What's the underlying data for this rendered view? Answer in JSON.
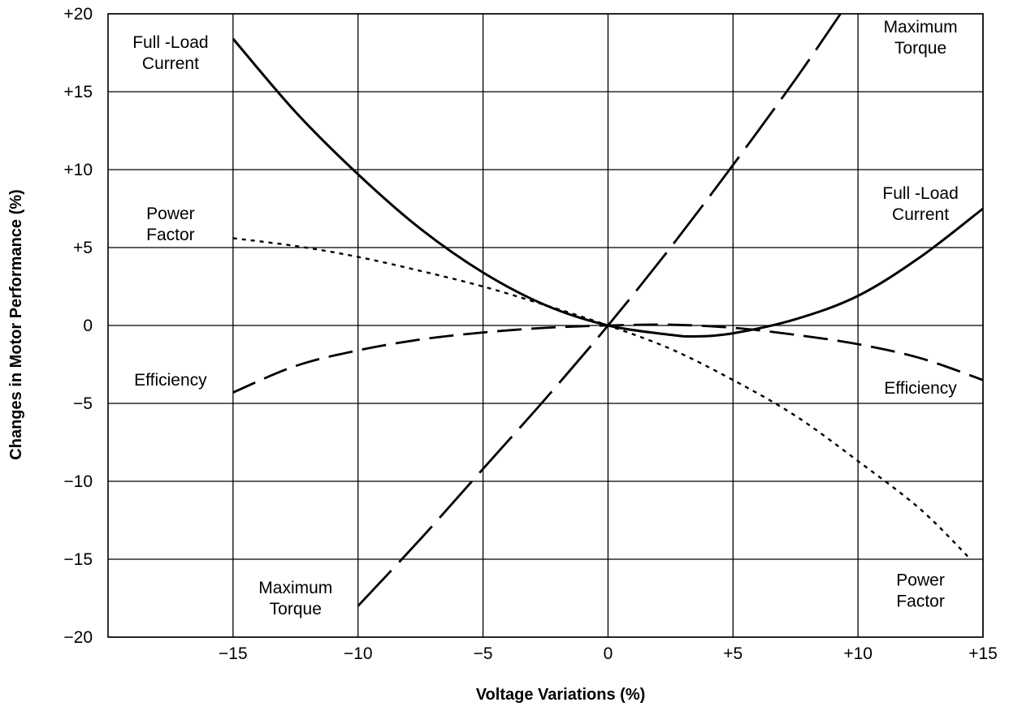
{
  "chart_data": {
    "type": "line",
    "xlabel": "Voltage Variations (%)",
    "ylabel": "Changes in Motor Performance (%)",
    "xlim": [
      -20,
      15
    ],
    "ylim": [
      -20,
      20
    ],
    "x_ticks": [
      -15,
      -10,
      -5,
      0,
      5,
      10,
      15
    ],
    "x_tick_labels": [
      "−15",
      "−10",
      "−5",
      "0",
      "+5",
      "+10",
      "+15"
    ],
    "y_ticks": [
      20,
      15,
      10,
      5,
      0,
      -5,
      -10,
      -15,
      -20
    ],
    "y_tick_labels": [
      "+20",
      "+15",
      "+10",
      "+5",
      "0",
      "−5",
      "−10",
      "−15",
      "−20"
    ],
    "grid": true,
    "series": [
      {
        "name": "Full -Load Current",
        "line_style": "solid",
        "x": [
          -15,
          -12.5,
          -10,
          -7.5,
          -5,
          -2.5,
          0,
          2.5,
          3.5,
          5,
          7.5,
          10,
          12.5,
          15
        ],
        "y": [
          18.4,
          13.7,
          9.7,
          6.2,
          3.4,
          1.3,
          0,
          -0.6,
          -0.7,
          -0.5,
          0.4,
          1.9,
          4.4,
          7.5
        ]
      },
      {
        "name": "Maximum Torque",
        "line_style": "long-dash",
        "x": [
          -10,
          -7.5,
          -5,
          -2.5,
          0,
          2.5,
          5,
          7.5,
          9.3
        ],
        "y": [
          -18,
          -13.7,
          -9.2,
          -4.7,
          0,
          5,
          10.3,
          15.8,
          20
        ]
      },
      {
        "name": "Power Factor",
        "line_style": "dotted",
        "x": [
          -15,
          -12.5,
          -10,
          -7.5,
          -5,
          -2.5,
          0,
          2.5,
          5,
          7.5,
          10,
          12.5,
          14.5
        ],
        "y": [
          5.6,
          5.1,
          4.4,
          3.5,
          2.5,
          1.3,
          0,
          -1.5,
          -3.5,
          -5.8,
          -8.7,
          -11.8,
          -15
        ]
      },
      {
        "name": "Efficiency",
        "line_style": "dashed",
        "x": [
          -15,
          -12.5,
          -10,
          -7.5,
          -5,
          -2.5,
          0,
          2.5,
          5,
          7.5,
          10,
          12.5,
          15
        ],
        "y": [
          -4.3,
          -2.6,
          -1.6,
          -0.9,
          -0.45,
          -0.15,
          0,
          0.05,
          -0.15,
          -0.6,
          -1.2,
          -2.1,
          -3.5
        ]
      }
    ],
    "annotations": [
      {
        "text": [
          "Full -Load",
          "Current"
        ],
        "at": [
          -17.5,
          17.5
        ]
      },
      {
        "text": [
          "Maximum",
          "Torque"
        ],
        "at": [
          12.5,
          18.5
        ]
      },
      {
        "text": [
          "Full -Load",
          "Current"
        ],
        "at": [
          12.5,
          7.8
        ]
      },
      {
        "text": [
          "Power",
          "Factor"
        ],
        "at": [
          -17.5,
          6.5
        ]
      },
      {
        "text": [
          "Efficiency"
        ],
        "at": [
          -17.5,
          -3.5
        ]
      },
      {
        "text": [
          "Efficiency"
        ],
        "at": [
          12.5,
          -4.0
        ]
      },
      {
        "text": [
          "Maximum",
          "Torque"
        ],
        "at": [
          -12.5,
          -17.5
        ]
      },
      {
        "text": [
          "Power",
          "Factor"
        ],
        "at": [
          12.5,
          -17.0
        ]
      }
    ]
  }
}
